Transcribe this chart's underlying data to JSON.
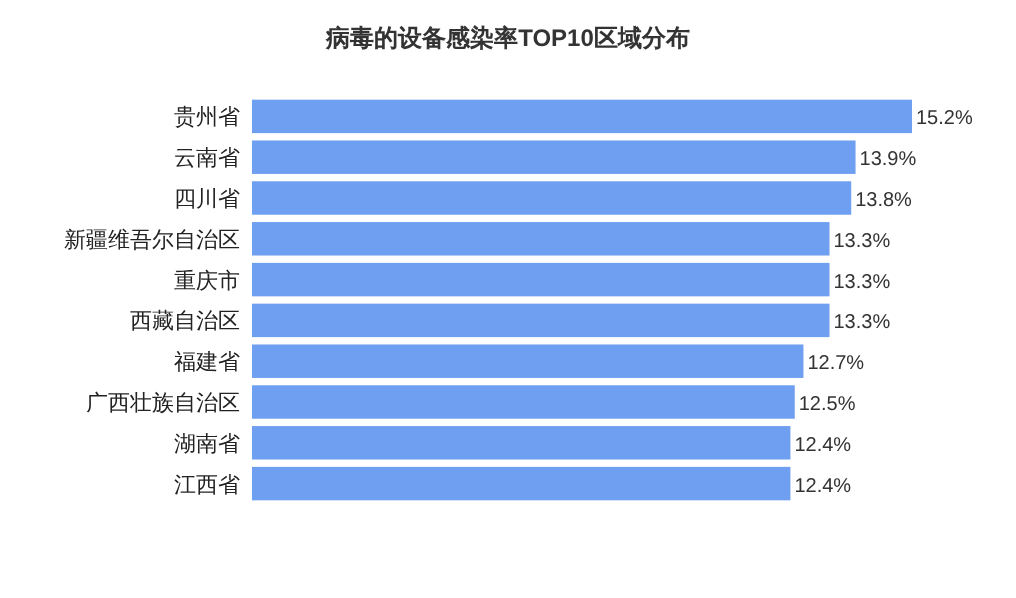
{
  "chart_data": {
    "type": "bar",
    "orientation": "horizontal",
    "title": "病毒的设备感染率TOP10区域分布",
    "categories": [
      "贵州省",
      "云南省",
      "四川省",
      "新疆维吾尔自治区",
      "重庆市",
      "西藏自治区",
      "福建省",
      "广西壮族自治区",
      "湖南省",
      "江西省"
    ],
    "values": [
      15.2,
      13.9,
      13.8,
      13.3,
      13.3,
      13.3,
      12.7,
      12.5,
      12.4,
      12.4
    ],
    "value_labels": [
      "15.2%",
      "13.9%",
      "13.8%",
      "13.3%",
      "13.3%",
      "13.3%",
      "12.7%",
      "12.5%",
      "12.4%",
      "12.4%"
    ],
    "color": "#6f9ff0"
  }
}
